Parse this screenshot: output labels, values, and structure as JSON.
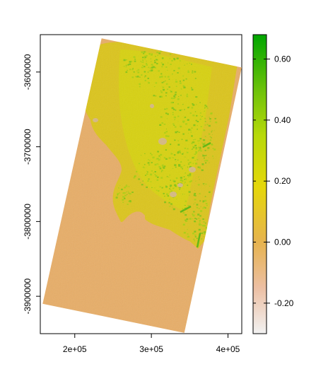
{
  "chart_data": {
    "type": "heatmap",
    "title": "",
    "xlabel": "",
    "ylabel": "",
    "x_ticks": [
      {
        "value": 200000,
        "label": "2e+05"
      },
      {
        "value": 300000,
        "label": "3e+05"
      },
      {
        "value": 400000,
        "label": "4e+05"
      }
    ],
    "y_ticks": [
      {
        "value": -3600000,
        "label": "-3600000"
      },
      {
        "value": -3700000,
        "label": "-3700000"
      },
      {
        "value": -3800000,
        "label": "-3800000"
      },
      {
        "value": -3900000,
        "label": "-3900000"
      }
    ],
    "xlim": [
      155000,
      418000
    ],
    "ylim": [
      -3950000,
      -3550000
    ],
    "raster_footprint": [
      [
        235000,
        -3555000
      ],
      [
        418000,
        -3594000
      ],
      [
        343000,
        -3949000
      ],
      [
        158000,
        -3910000
      ]
    ],
    "legend": {
      "placement": "right",
      "type": "colorbar",
      "range": [
        -0.3,
        0.68
      ],
      "ticks": [
        {
          "value": 0.6,
          "label": "0.60"
        },
        {
          "value": 0.4,
          "label": "0.40"
        },
        {
          "value": 0.2,
          "label": "0.20"
        },
        {
          "value": 0.0,
          "label": "0.00"
        },
        {
          "value": -0.2,
          "label": "-0.20"
        }
      ],
      "color_stops": [
        {
          "value": -0.3,
          "color": "#f2f2f2"
        },
        {
          "value": -0.15,
          "color": "#ecbfa3"
        },
        {
          "value": 0.0,
          "color": "#e6b34f"
        },
        {
          "value": 0.18,
          "color": "#e5d70a"
        },
        {
          "value": 0.35,
          "color": "#b7d90a"
        },
        {
          "value": 0.5,
          "color": "#6cc20a"
        },
        {
          "value": 0.68,
          "color": "#00a600"
        }
      ]
    },
    "colors": {
      "background_value": "#e8ae68",
      "land_low": "#dcc51c",
      "land_mid": "#d7d30e",
      "vegetation_high": "#7fc312",
      "urban": "#d6b78f"
    },
    "grid": false
  }
}
